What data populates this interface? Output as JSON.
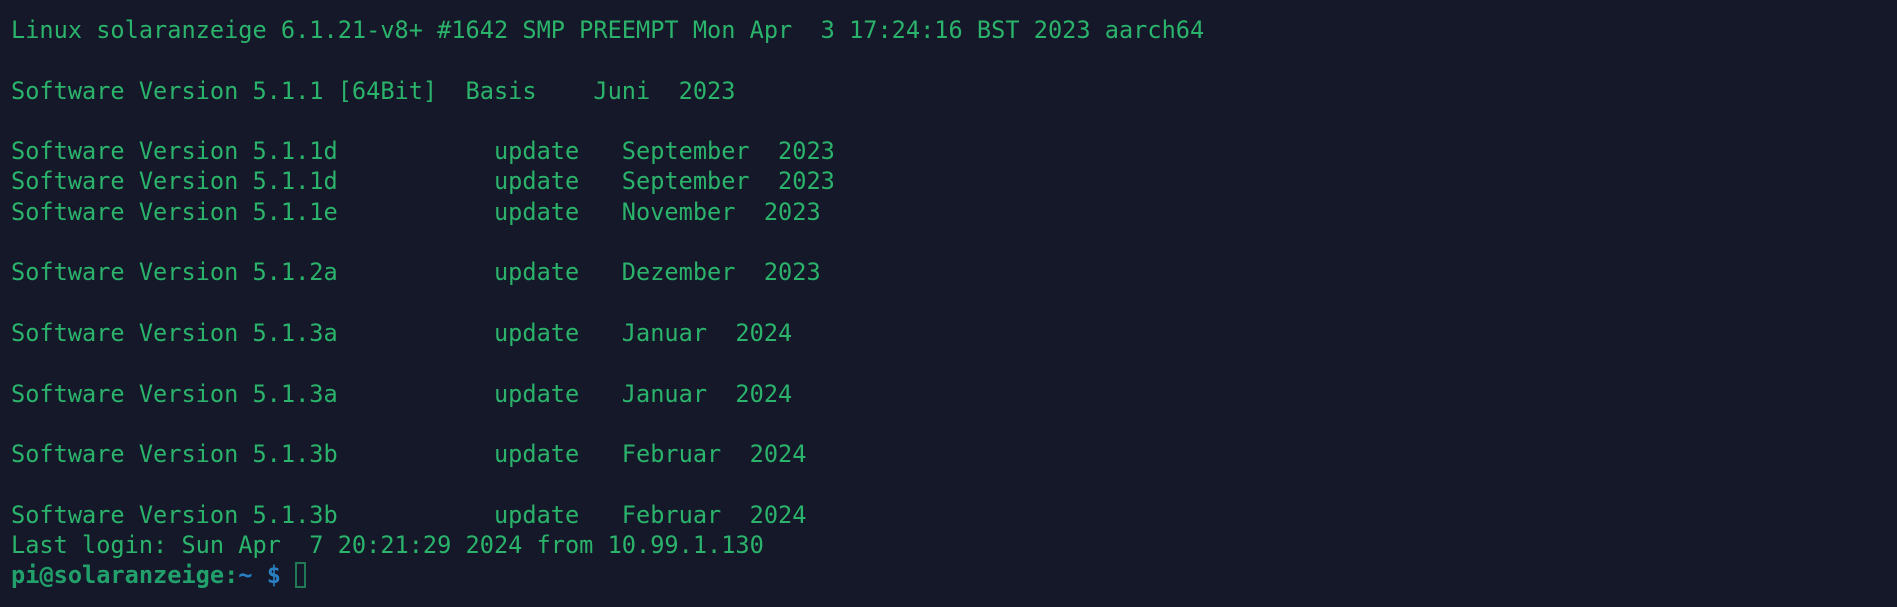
{
  "terminal": {
    "lines": [
      "Linux solaranzeige 6.1.21-v8+ #1642 SMP PREEMPT Mon Apr  3 17:24:16 BST 2023 aarch64",
      "",
      "Software Version 5.1.1 [64Bit]  Basis    Juni  2023",
      "",
      "Software Version 5.1.1d           update   September  2023",
      "Software Version 5.1.1d           update   September  2023",
      "Software Version 5.1.1e           update   November  2023",
      "",
      "Software Version 5.1.2a           update   Dezember  2023",
      "",
      "Software Version 5.1.3a           update   Januar  2024",
      "",
      "Software Version 5.1.3a           update   Januar  2024",
      "",
      "Software Version 5.1.3b           update   Februar  2024",
      "",
      "Software Version 5.1.3b           update   Februar  2024",
      "Last login: Sun Apr  7 20:21:29 2024 from 10.99.1.130"
    ],
    "prompt": {
      "user_host": "pi@solaranzeige:",
      "path": "~ $",
      "input": ""
    },
    "colors": {
      "background": "#141829",
      "text": "#2bb36b",
      "prompt_user": "#22a06b",
      "prompt_path": "#2a7fc0"
    }
  }
}
